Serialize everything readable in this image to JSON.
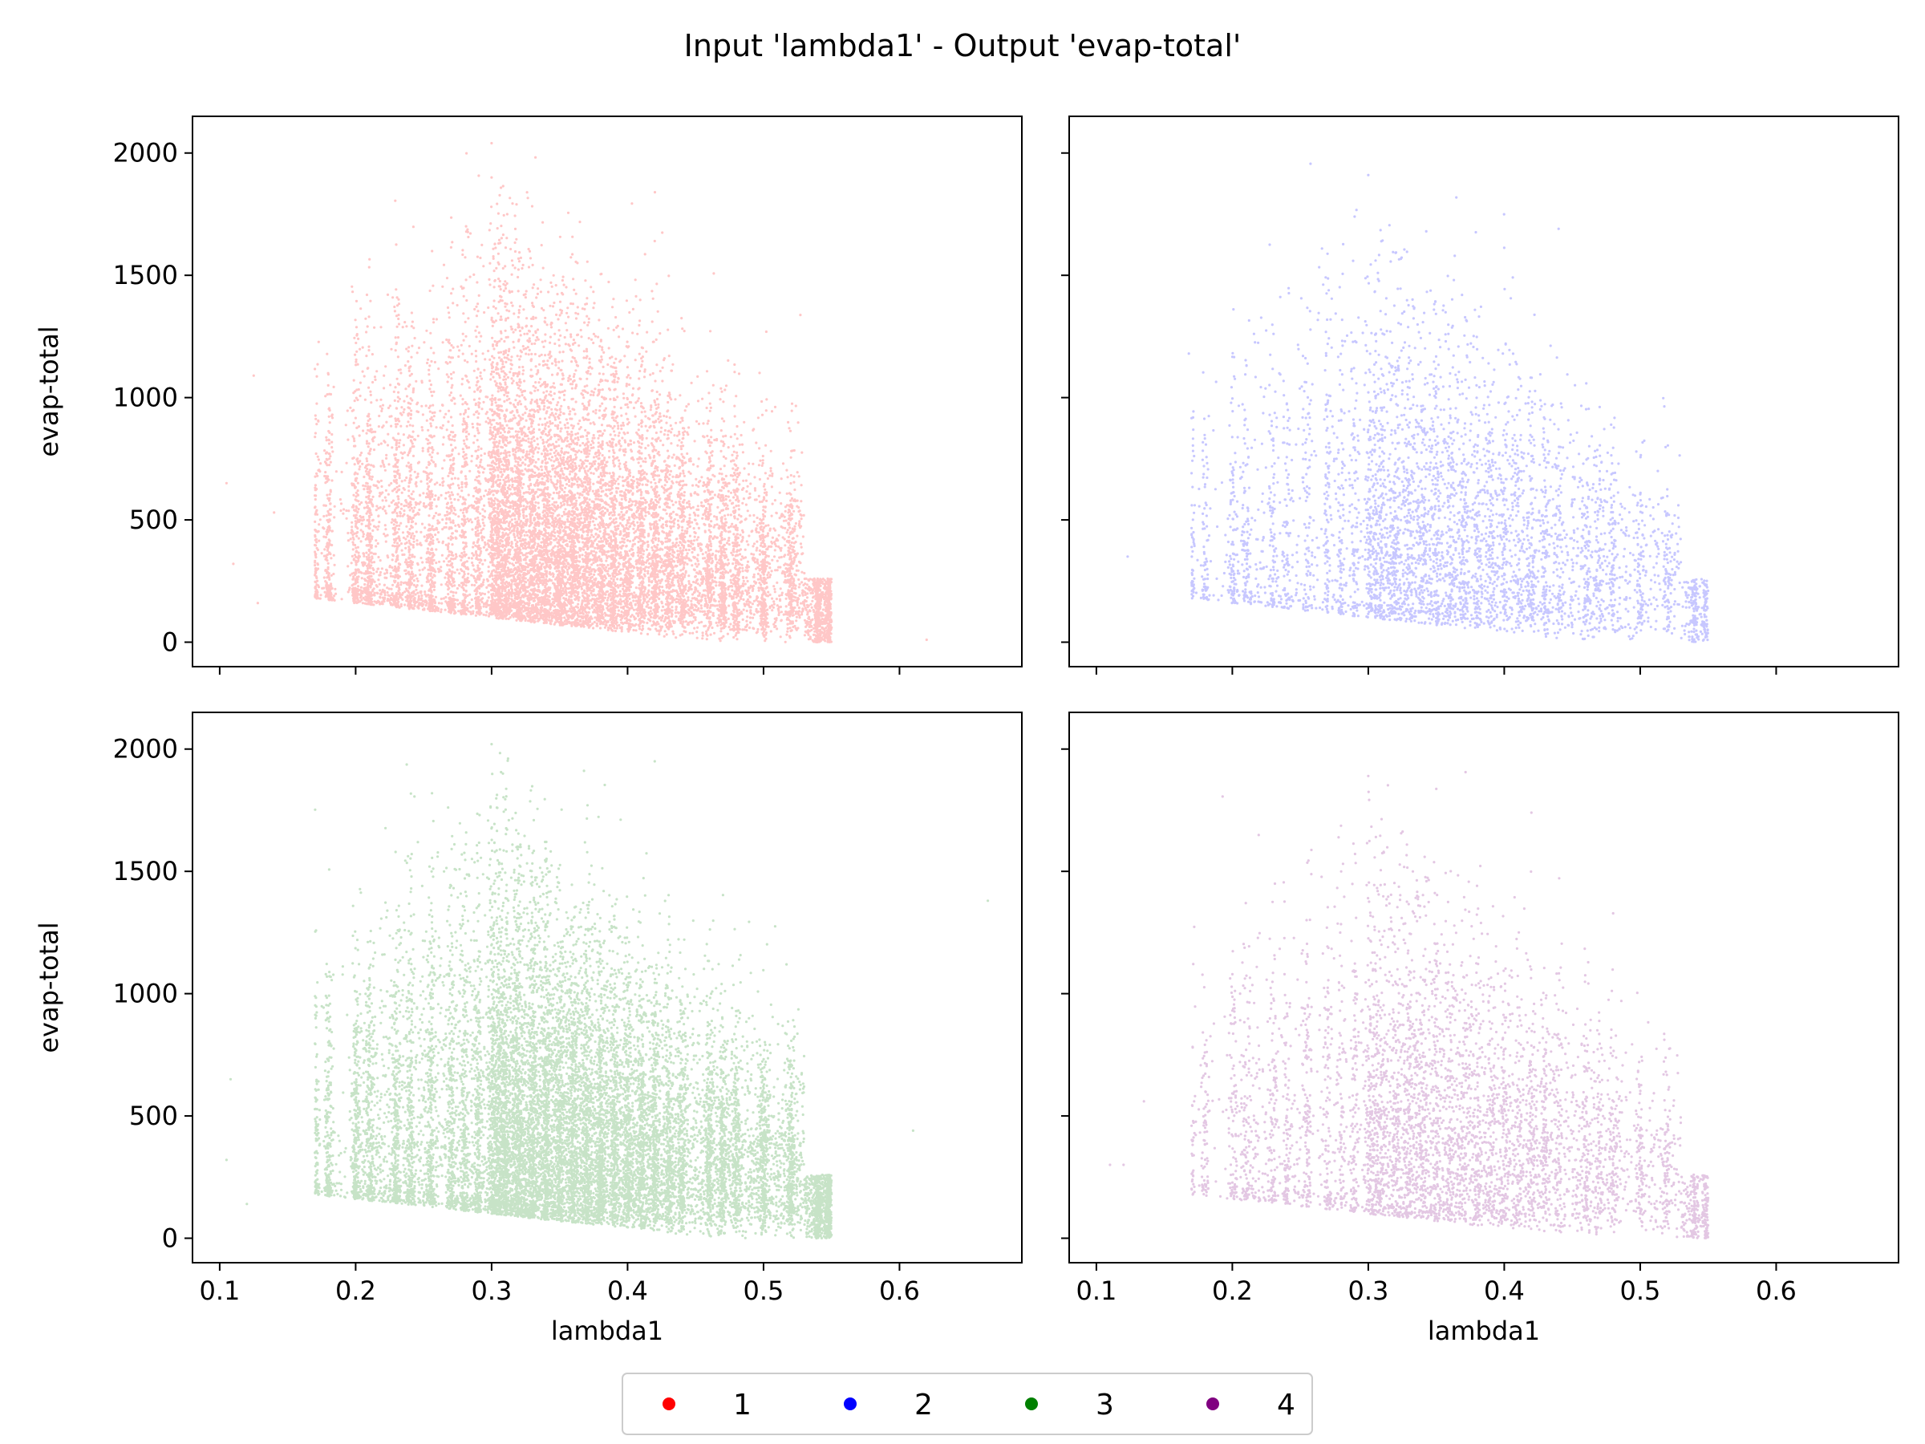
{
  "figure": {
    "title": "Input 'lambda1' - Output 'evap-total'"
  },
  "chart_data": {
    "type": "scatter",
    "x_label": "lambda1",
    "y_label": "evap-total",
    "xlim": [
      0.08,
      0.69
    ],
    "ylim": [
      -100,
      2150
    ],
    "x_ticks": [
      0.1,
      0.2,
      0.3,
      0.4,
      0.5,
      0.6
    ],
    "x_tick_labels": [
      "0.1",
      "0.2",
      "0.3",
      "0.4",
      "0.5",
      "0.6"
    ],
    "y_ticks": [
      0,
      500,
      1000,
      1500,
      2000
    ],
    "y_tick_labels": [
      "0",
      "500",
      "1000",
      "1500",
      "2000"
    ],
    "grid": false,
    "legend": {
      "placement": "bottom-center",
      "entries": [
        {
          "label": "1",
          "color": "#ff0000"
        },
        {
          "label": "2",
          "color": "#0000ff"
        },
        {
          "label": "3",
          "color": "#008000"
        },
        {
          "label": "4",
          "color": "#800080"
        }
      ]
    },
    "panels": [
      {
        "series": "1",
        "color": "#ff0000",
        "point_count": 14000,
        "points": [
          [
            0.105,
            650
          ],
          [
            0.11,
            320
          ],
          [
            0.125,
            1090
          ],
          [
            0.128,
            160
          ],
          [
            0.14,
            530
          ],
          [
            0.62,
            10
          ],
          [
            0.3,
            2040
          ],
          [
            0.42,
            1640
          ],
          [
            0.55,
            60
          ],
          [
            0.3,
            1900
          ]
        ]
      },
      {
        "series": "2",
        "color": "#0000ff",
        "point_count": 5000,
        "points": [
          [
            0.123,
            350
          ],
          [
            0.168,
            1180
          ],
          [
            0.3,
            1910
          ],
          [
            0.44,
            1690
          ],
          [
            0.548,
            20
          ],
          [
            0.548,
            130
          ]
        ]
      },
      {
        "series": "3",
        "color": "#008000",
        "point_count": 16000,
        "points": [
          [
            0.105,
            320
          ],
          [
            0.108,
            650
          ],
          [
            0.12,
            140
          ],
          [
            0.665,
            1380
          ],
          [
            0.61,
            440
          ],
          [
            0.3,
            2020
          ],
          [
            0.42,
            1950
          ],
          [
            0.548,
            30
          ]
        ]
      },
      {
        "series": "4",
        "color": "#800080",
        "point_count": 5500,
        "points": [
          [
            0.11,
            300
          ],
          [
            0.12,
            300
          ],
          [
            0.135,
            560
          ],
          [
            0.3,
            1890
          ],
          [
            0.42,
            1740
          ],
          [
            0.548,
            20
          ]
        ]
      }
    ]
  }
}
